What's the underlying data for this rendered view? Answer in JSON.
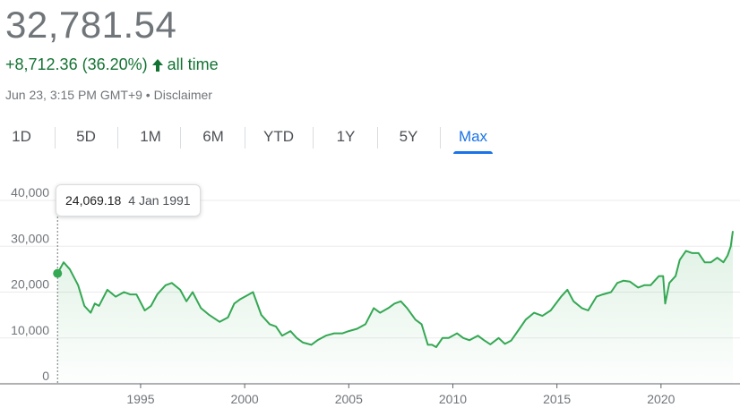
{
  "header": {
    "price": "32,781.54",
    "change_text": "+8,712.36 (36.20%)",
    "change_suffix": "all time",
    "timestamp": "Jun 23, 3:15 PM GMT+9",
    "separator": "•",
    "disclaimer": "Disclaimer",
    "up_color": "#137333"
  },
  "tabs": [
    {
      "label": "1D",
      "active": false
    },
    {
      "label": "5D",
      "active": false
    },
    {
      "label": "1M",
      "active": false
    },
    {
      "label": "6M",
      "active": false
    },
    {
      "label": "YTD",
      "active": false
    },
    {
      "label": "1Y",
      "active": false
    },
    {
      "label": "5Y",
      "active": false
    },
    {
      "label": "Max",
      "active": true
    }
  ],
  "tooltip": {
    "value": "24,069.18",
    "date": "4 Jan 1991"
  },
  "chart_data": {
    "type": "area",
    "title": "",
    "xlabel": "",
    "ylabel": "",
    "line_color": "#34a853",
    "ylim": [
      0,
      40000
    ],
    "xlim": [
      1991,
      2023.5
    ],
    "y_ticks": [
      {
        "value": 0,
        "label": "0"
      },
      {
        "value": 10000,
        "label": "10,000"
      },
      {
        "value": 20000,
        "label": "20,000"
      },
      {
        "value": 30000,
        "label": "30,000"
      },
      {
        "value": 40000,
        "label": "40,000"
      }
    ],
    "x_ticks": [
      {
        "value": 1995,
        "label": "1995"
      },
      {
        "value": 2000,
        "label": "2000"
      },
      {
        "value": 2005,
        "label": "2005"
      },
      {
        "value": 2010,
        "label": "2010"
      },
      {
        "value": 2015,
        "label": "2015"
      },
      {
        "value": 2020,
        "label": "2020"
      }
    ],
    "grid": true,
    "marker": {
      "x": 1991.01,
      "y": 24069.18
    },
    "series": [
      {
        "x": [
          1991.01,
          1991.3,
          1991.6,
          1992.0,
          1992.3,
          1992.6,
          1992.8,
          1993.0,
          1993.4,
          1993.8,
          1994.2,
          1994.5,
          1994.8,
          1995.2,
          1995.5,
          1995.8,
          1996.2,
          1996.5,
          1996.9,
          1997.2,
          1997.5,
          1997.9,
          1998.3,
          1998.8,
          1999.2,
          1999.5,
          1999.8,
          2000.2,
          2000.4,
          2000.8,
          2001.2,
          2001.5,
          2001.8,
          2002.2,
          2002.5,
          2002.8,
          2003.2,
          2003.5,
          2003.9,
          2004.3,
          2004.7,
          2005.0,
          2005.4,
          2005.8,
          2006.2,
          2006.5,
          2006.9,
          2007.2,
          2007.5,
          2007.8,
          2008.2,
          2008.5,
          2008.8,
          2009.0,
          2009.2,
          2009.5,
          2009.8,
          2010.2,
          2010.5,
          2010.8,
          2011.2,
          2011.5,
          2011.8,
          2012.2,
          2012.5,
          2012.8,
          2013.2,
          2013.5,
          2013.9,
          2014.3,
          2014.7,
          2015.2,
          2015.5,
          2015.8,
          2016.2,
          2016.5,
          2016.9,
          2017.2,
          2017.6,
          2017.9,
          2018.2,
          2018.5,
          2018.9,
          2019.2,
          2019.5,
          2019.9,
          2020.1,
          2020.2,
          2020.4,
          2020.7,
          2020.9,
          2021.2,
          2021.5,
          2021.8,
          2022.1,
          2022.4,
          2022.7,
          2023.0,
          2023.2,
          2023.35,
          2023.45
        ],
        "y": [
          24069,
          26500,
          25000,
          21500,
          17000,
          15500,
          17500,
          17000,
          20500,
          19000,
          20000,
          19500,
          19500,
          16000,
          17000,
          19500,
          21500,
          22000,
          20500,
          18000,
          20000,
          16500,
          15000,
          13500,
          14500,
          17500,
          18500,
          19500,
          20000,
          15000,
          13000,
          12500,
          10500,
          11500,
          10000,
          9000,
          8500,
          9500,
          10500,
          11000,
          11000,
          11500,
          12000,
          13000,
          16500,
          15500,
          16500,
          17500,
          18000,
          16500,
          14000,
          13000,
          8500,
          8500,
          8000,
          10000,
          10000,
          11000,
          10000,
          9500,
          10500,
          9500,
          8600,
          10000,
          8700,
          9400,
          12000,
          14000,
          15500,
          14800,
          16000,
          19000,
          20500,
          18000,
          16500,
          16000,
          19000,
          19500,
          20000,
          22000,
          22500,
          22300,
          21000,
          21500,
          21500,
          23500,
          23500,
          17500,
          22000,
          23500,
          27000,
          29000,
          28500,
          28500,
          26500,
          26500,
          27500,
          26500,
          28000,
          30000,
          33300
        ]
      }
    ]
  }
}
